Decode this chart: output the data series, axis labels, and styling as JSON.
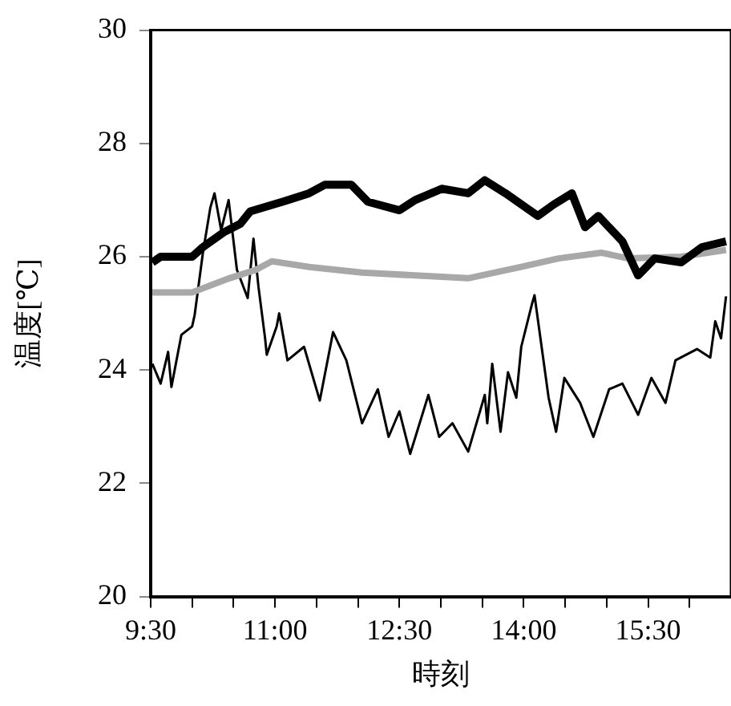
{
  "chart_data": {
    "type": "line",
    "xlabel": "時刻",
    "ylabel": "温度[℃]",
    "xlim": [
      9.5,
      16.5
    ],
    "ylim": [
      20,
      30
    ],
    "yticks": [
      20,
      22,
      24,
      26,
      28,
      30
    ],
    "xticks": [
      {
        "value": 9.5,
        "label": "9:30"
      },
      {
        "value": 10,
        "label": null
      },
      {
        "value": 10.5,
        "label": null
      },
      {
        "value": 11,
        "label": "11:00"
      },
      {
        "value": 11.5,
        "label": null
      },
      {
        "value": 12,
        "label": null
      },
      {
        "value": 12.5,
        "label": "12:30"
      },
      {
        "value": 13,
        "label": null
      },
      {
        "value": 13.5,
        "label": null
      },
      {
        "value": 14,
        "label": "14:00"
      },
      {
        "value": 14.5,
        "label": null
      },
      {
        "value": 15,
        "label": null
      },
      {
        "value": 15.5,
        "label": "15:30"
      },
      {
        "value": 16,
        "label": null
      }
    ],
    "grid": false,
    "legend": false,
    "marker": "none",
    "series": [
      {
        "color": "#000000",
        "x": [
          9.52,
          9.62,
          10.0,
          10.13,
          10.38,
          10.58,
          10.7,
          11.09,
          11.41,
          11.6,
          11.92,
          12.12,
          12.5,
          12.69,
          13.01,
          13.33,
          13.53,
          13.78,
          14.17,
          14.36,
          14.58,
          14.74,
          14.9,
          15.19,
          15.38,
          15.58,
          15.9,
          16.15,
          16.44
        ],
        "values": [
          25.9,
          26.0,
          26.0,
          26.17,
          26.43,
          26.58,
          26.8,
          26.97,
          27.12,
          27.27,
          27.27,
          26.97,
          26.82,
          27.0,
          27.2,
          27.12,
          27.35,
          27.12,
          26.72,
          26.92,
          27.12,
          26.52,
          26.72,
          26.27,
          25.67,
          25.97,
          25.9,
          26.17,
          26.27
        ]
      },
      {
        "color": "#a8a8a8",
        "x": [
          9.52,
          10.0,
          10.45,
          10.77,
          10.96,
          11.41,
          12.05,
          12.69,
          13.33,
          13.97,
          14.42,
          14.94,
          15.26,
          15.9,
          16.44
        ],
        "values": [
          25.37,
          25.37,
          25.62,
          25.77,
          25.92,
          25.82,
          25.72,
          25.67,
          25.62,
          25.82,
          25.97,
          26.07,
          25.97,
          26.0,
          26.12
        ]
      },
      {
        "color": "#000000",
        "x": [
          9.52,
          9.62,
          9.71,
          9.75,
          9.87,
          10.0,
          10.03,
          10.13,
          10.22,
          10.27,
          10.35,
          10.44,
          10.54,
          10.67,
          10.74,
          10.8,
          10.88,
          10.9,
          11.02,
          11.05,
          11.15,
          11.35,
          11.54,
          11.7,
          11.86,
          12.05,
          12.24,
          12.37,
          12.5,
          12.63,
          12.85,
          12.98,
          13.14,
          13.33,
          13.53,
          13.56,
          13.62,
          13.72,
          13.81,
          13.91,
          13.97,
          14.1,
          14.13,
          14.3,
          14.39,
          14.49,
          14.68,
          14.84,
          15.03,
          15.19,
          15.38,
          15.54,
          15.71,
          15.83,
          16.09,
          16.25,
          16.31,
          16.38,
          16.44
        ],
        "values": [
          24.11,
          23.76,
          24.32,
          23.7,
          24.62,
          24.77,
          24.97,
          26.07,
          26.87,
          27.12,
          26.47,
          27.0,
          25.77,
          25.27,
          26.32,
          25.47,
          24.56,
          24.27,
          24.77,
          25.0,
          24.17,
          24.41,
          23.46,
          24.67,
          24.17,
          23.06,
          23.66,
          22.82,
          23.27,
          22.52,
          23.56,
          22.82,
          23.06,
          22.56,
          23.56,
          23.06,
          24.11,
          22.91,
          23.96,
          23.51,
          24.41,
          25.17,
          25.32,
          23.51,
          22.91,
          23.86,
          23.42,
          22.82,
          23.66,
          23.76,
          23.21,
          23.86,
          23.42,
          24.17,
          24.37,
          24.22,
          24.86,
          24.56,
          25.3
        ]
      }
    ]
  }
}
